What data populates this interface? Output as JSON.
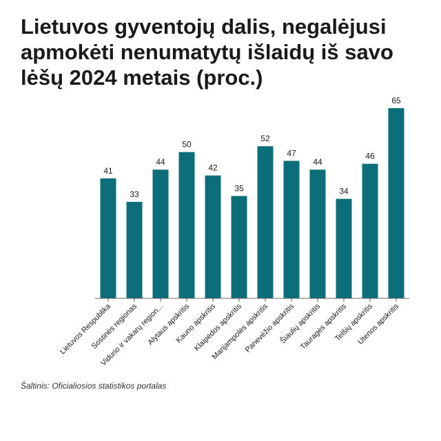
{
  "title": "Lietuvos gyventojų dalis, negalėjusi apmokėti nenumatytų išlaidų iš savo lėšų 2024 metais (proc.)",
  "source": "Šaltinis: Oficialiosios statistikos portalas",
  "colors": {
    "bar": "#0b6e78",
    "axis": "#666666",
    "text": "#1a1a1a"
  },
  "chart_data": {
    "type": "bar",
    "title": "Lietuvos gyventojų dalis, negalėjusi apmokėti nenumatytų išlaidų iš savo lėšų 2024 metais (proc.)",
    "xlabel": "",
    "ylabel": "",
    "ylim": [
      0,
      65
    ],
    "grid": false,
    "legend": "none",
    "categories": [
      "Lietuvos Respublika",
      "Sostinės regionas",
      "Vidurio ir vakarų region...",
      "Alytaus apskritis",
      "Kauno apskritis",
      "Klaipėdos apskritis",
      "Marijampolės apskritis",
      "Panevėžio apskritis",
      "Šiaulių apskritis",
      "Tauragės apskritis",
      "Telšių apskritis",
      "Utenos apskritis"
    ],
    "values": [
      41,
      33,
      44,
      50,
      42,
      35,
      52,
      47,
      44,
      34,
      46,
      65
    ]
  }
}
